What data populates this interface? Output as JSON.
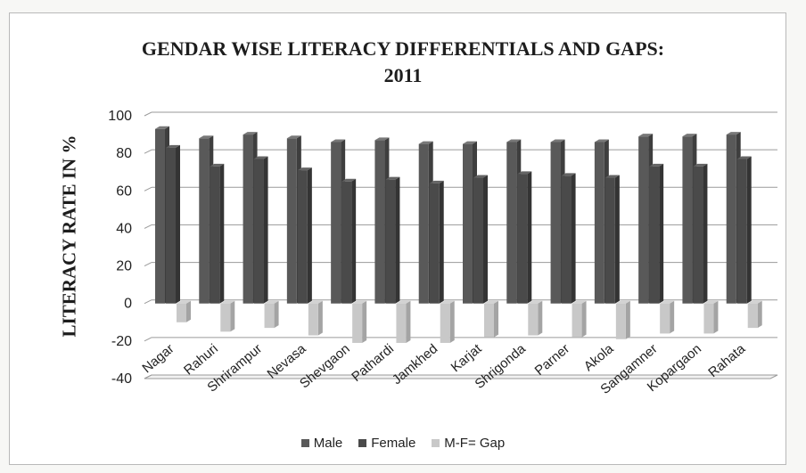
{
  "chart_data": {
    "type": "bar",
    "title_line1": "GENDAR WISE LITERACY DIFFERENTIALS AND GAPS:",
    "title_line2": "2011",
    "ylabel": "LITERACY RATE IN %",
    "xlabel": "",
    "ylim": [
      -40,
      100
    ],
    "yticks": [
      "100",
      "80",
      "60",
      "40",
      "20",
      "0",
      "-20",
      "-40"
    ],
    "categories": [
      "Nagar",
      "Rahuri",
      "Shrirampur",
      "Nevasa",
      "Shevgaon",
      "Pathardi",
      "Jamkhed",
      "Karjat",
      "Shrigonda",
      "Parner",
      "Akola",
      "Sangamner",
      "Kopargaon",
      "Rahata"
    ],
    "series": [
      {
        "name": "Male",
        "color": "#595959",
        "values": [
          93,
          88,
          90,
          88,
          86,
          87,
          85,
          85,
          86,
          86,
          86,
          89,
          89,
          90
        ]
      },
      {
        "name": "Female",
        "color": "#4a4a4a",
        "values": [
          83,
          73,
          77,
          71,
          65,
          66,
          64,
          67,
          69,
          68,
          67,
          73,
          73,
          77
        ]
      },
      {
        "name": "M-F= Gap",
        "color": "#c8c8c8",
        "values": [
          -10,
          -15,
          -13,
          -17,
          -21,
          -21,
          -21,
          -18,
          -17,
          -18,
          -19,
          -16,
          -16,
          -13
        ]
      }
    ],
    "legend_position": "bottom",
    "grid": true
  }
}
